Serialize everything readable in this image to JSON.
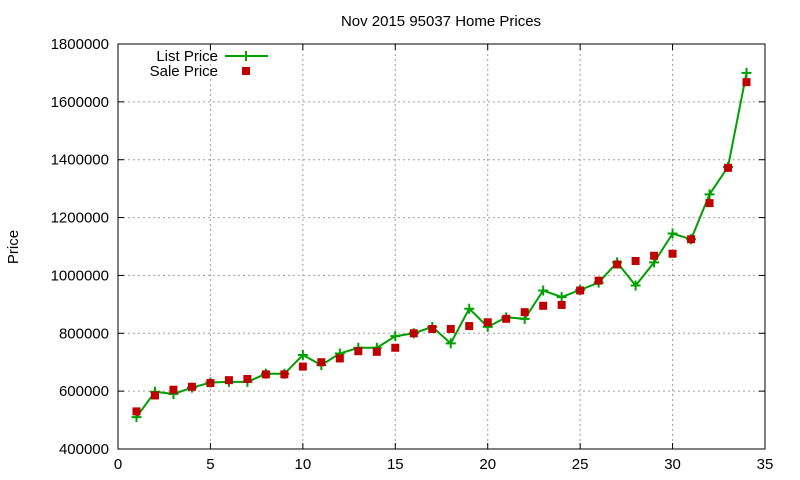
{
  "chart_data": {
    "type": "line",
    "title": "Nov 2015 95037 Home Prices",
    "xlabel": "",
    "ylabel": "Price",
    "xlim": [
      0,
      35
    ],
    "ylim": [
      400000,
      1800000
    ],
    "x_ticks": [
      0,
      5,
      10,
      15,
      20,
      25,
      30,
      35
    ],
    "y_ticks": [
      400000,
      600000,
      800000,
      1000000,
      1200000,
      1400000,
      1600000,
      1800000
    ],
    "grid": true,
    "legend_position": "top-left",
    "x": [
      1,
      2,
      3,
      4,
      5,
      6,
      7,
      8,
      9,
      10,
      11,
      12,
      13,
      14,
      15,
      16,
      17,
      18,
      19,
      20,
      21,
      22,
      23,
      24,
      25,
      26,
      27,
      28,
      29,
      30,
      31,
      32,
      33,
      34
    ],
    "series": [
      {
        "name": "List Price",
        "style": "line+plus",
        "color": "#00a000",
        "values": [
          510000,
          598000,
          590000,
          612000,
          630000,
          632000,
          632000,
          660000,
          660000,
          725000,
          690000,
          730000,
          750000,
          750000,
          790000,
          800000,
          822000,
          765000,
          885000,
          822000,
          855000,
          850000,
          948000,
          925000,
          950000,
          975000,
          1045000,
          965000,
          1045000,
          1145000,
          1125000,
          1280000,
          1375000,
          1700000
        ]
      },
      {
        "name": "Sale Price",
        "style": "square",
        "color": "#c00000",
        "values": [
          530000,
          585000,
          605000,
          615000,
          628000,
          638000,
          642000,
          658000,
          658000,
          685000,
          700000,
          713000,
          738000,
          736000,
          750000,
          800000,
          815000,
          815000,
          825000,
          838000,
          850000,
          873000,
          895000,
          898000,
          948000,
          982000,
          1038000,
          1050000,
          1068000,
          1075000,
          1125000,
          1250000,
          1372000,
          1668000
        ]
      }
    ]
  }
}
